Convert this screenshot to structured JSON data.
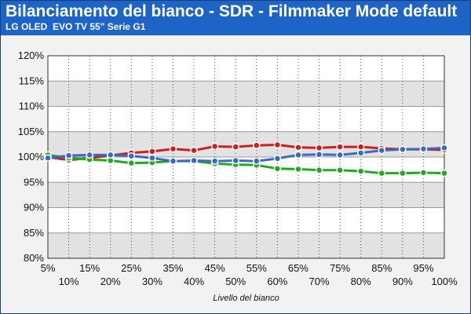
{
  "title": "Bilanciamento del bianco - SDR - Filmmaker Mode default",
  "subtitle": "LG OLED  EVO TV 55\" Serie G1",
  "chart_data": {
    "type": "line",
    "title": "Bilanciamento del bianco - SDR - Filmmaker Mode default",
    "subtitle": "LG OLED  EVO TV 55\" Serie G1",
    "xlabel": "Livello del bianco",
    "ylabel": "",
    "x": [
      5,
      10,
      15,
      20,
      25,
      30,
      35,
      40,
      45,
      50,
      55,
      60,
      65,
      70,
      75,
      80,
      85,
      90,
      95,
      100
    ],
    "x_tick_labels": [
      "5%",
      "10%",
      "15%",
      "20%",
      "25%",
      "30%",
      "35%",
      "40%",
      "45%",
      "50%",
      "55%",
      "60%",
      "65%",
      "70%",
      "75%",
      "80%",
      "85%",
      "90%",
      "95%",
      "100%"
    ],
    "y_tick_labels": [
      "80%",
      "85%",
      "90%",
      "95%",
      "100%",
      "105%",
      "110%",
      "115%",
      "120%"
    ],
    "y_ticks": [
      80,
      85,
      90,
      95,
      100,
      105,
      110,
      115,
      120
    ],
    "xlim": [
      5,
      100
    ],
    "ylim": [
      80,
      120
    ],
    "grid": true,
    "legend": "none",
    "series": [
      {
        "color": "#cc1f1f",
        "values": [
          100.0,
          99.4,
          99.8,
          100.3,
          100.8,
          101.1,
          101.6,
          101.3,
          102.1,
          102.0,
          102.3,
          102.4,
          101.9,
          101.8,
          102.0,
          102.0,
          101.7,
          101.5,
          101.5,
          101.4
        ]
      },
      {
        "color": "#22a822",
        "values": [
          100.4,
          99.8,
          99.5,
          99.3,
          98.8,
          98.9,
          99.2,
          99.2,
          98.7,
          98.5,
          98.4,
          97.7,
          97.6,
          97.4,
          97.4,
          97.2,
          96.8,
          96.8,
          96.9,
          96.8
        ]
      },
      {
        "color": "#3a6ac2",
        "values": [
          99.8,
          100.3,
          100.4,
          100.4,
          100.2,
          99.8,
          99.2,
          99.3,
          99.2,
          99.3,
          99.2,
          99.7,
          100.4,
          100.5,
          100.4,
          100.8,
          101.3,
          101.5,
          101.6,
          101.8
        ]
      }
    ]
  }
}
